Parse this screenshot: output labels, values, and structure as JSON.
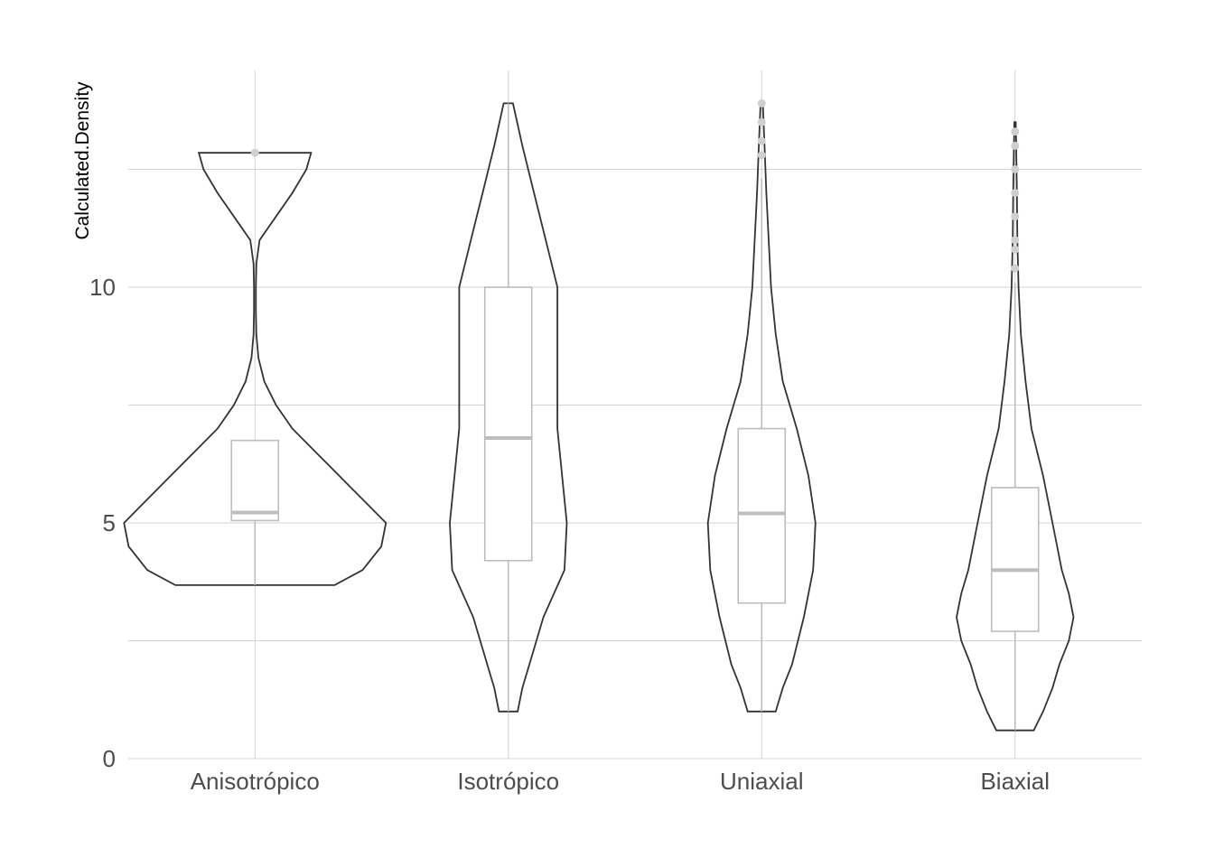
{
  "chart_data": {
    "type": "violin",
    "ylabel": "Calculated.Density",
    "xlabel": "",
    "title": "",
    "ylim": [
      0,
      14.3
    ],
    "y_ticks": [
      0,
      5,
      10
    ],
    "y_minor_ticks": [
      2.5,
      7.5,
      12.5
    ],
    "grid": true,
    "legend": "none",
    "colors": {
      "violin_stroke": "#333333",
      "box_stroke": "#bdbdbd",
      "grid": "#d3d3d3",
      "outlier": "#cfcfcf"
    },
    "categories": [
      "Anisotrópico",
      "Isotrópico",
      "Uniaxial",
      "Biaxial"
    ],
    "groups": [
      {
        "name": "Anisotrópico",
        "box": {
          "q1": 5.05,
          "median": 5.22,
          "q3": 6.75,
          "whisker_low": 3.68,
          "whisker_high": 6.75
        },
        "outliers": [
          12.85
        ],
        "violin": [
          [
            3.68,
            0.34
          ],
          [
            4.0,
            0.46
          ],
          [
            4.5,
            0.54
          ],
          [
            5.0,
            0.56
          ],
          [
            5.5,
            0.46
          ],
          [
            6.0,
            0.36
          ],
          [
            6.5,
            0.26
          ],
          [
            7.0,
            0.16
          ],
          [
            7.5,
            0.09
          ],
          [
            8.0,
            0.04
          ],
          [
            8.5,
            0.015
          ],
          [
            9.0,
            0.006
          ],
          [
            9.5,
            0.004
          ],
          [
            10.0,
            0.004
          ],
          [
            10.5,
            0.006
          ],
          [
            11.0,
            0.02
          ],
          [
            11.5,
            0.09
          ],
          [
            12.0,
            0.16
          ],
          [
            12.5,
            0.22
          ],
          [
            12.85,
            0.24
          ]
        ]
      },
      {
        "name": "Isotrópico",
        "box": {
          "q1": 4.2,
          "median": 6.8,
          "q3": 10.0,
          "whisker_low": 1.0,
          "whisker_high": 13.9
        },
        "outliers": [],
        "violin": [
          [
            1.0,
            0.04
          ],
          [
            1.5,
            0.06
          ],
          [
            2.0,
            0.09
          ],
          [
            3.0,
            0.15
          ],
          [
            4.0,
            0.24
          ],
          [
            5.0,
            0.25
          ],
          [
            6.0,
            0.23
          ],
          [
            7.0,
            0.21
          ],
          [
            8.0,
            0.21
          ],
          [
            9.0,
            0.21
          ],
          [
            10.0,
            0.21
          ],
          [
            11.0,
            0.16
          ],
          [
            12.0,
            0.11
          ],
          [
            13.0,
            0.06
          ],
          [
            13.9,
            0.02
          ]
        ]
      },
      {
        "name": "Uniaxial",
        "box": {
          "q1": 3.3,
          "median": 5.2,
          "q3": 7.0,
          "whisker_low": 1.0,
          "whisker_high": 12.3
        },
        "outliers": [
          12.8,
          13.1,
          13.5,
          13.9
        ],
        "violin": [
          [
            1.0,
            0.06
          ],
          [
            1.5,
            0.09
          ],
          [
            2.0,
            0.13
          ],
          [
            3.0,
            0.18
          ],
          [
            4.0,
            0.22
          ],
          [
            5.0,
            0.23
          ],
          [
            6.0,
            0.2
          ],
          [
            7.0,
            0.15
          ],
          [
            8.0,
            0.09
          ],
          [
            9.0,
            0.06
          ],
          [
            10.0,
            0.04
          ],
          [
            11.0,
            0.03
          ],
          [
            12.0,
            0.02
          ],
          [
            13.0,
            0.012
          ],
          [
            13.9,
            0.005
          ]
        ]
      },
      {
        "name": "Biaxial",
        "box": {
          "q1": 2.7,
          "median": 4.0,
          "q3": 5.75,
          "whisker_low": 0.6,
          "whisker_high": 10.1
        },
        "outliers": [
          10.4,
          10.8,
          11.0,
          11.5,
          12.0,
          12.5,
          13.0,
          13.3
        ],
        "violin": [
          [
            0.6,
            0.08
          ],
          [
            1.0,
            0.12
          ],
          [
            1.5,
            0.16
          ],
          [
            2.0,
            0.19
          ],
          [
            2.5,
            0.23
          ],
          [
            3.0,
            0.25
          ],
          [
            3.5,
            0.23
          ],
          [
            4.0,
            0.2
          ],
          [
            5.0,
            0.16
          ],
          [
            6.0,
            0.12
          ],
          [
            7.0,
            0.07
          ],
          [
            8.0,
            0.045
          ],
          [
            9.0,
            0.025
          ],
          [
            10.0,
            0.015
          ],
          [
            11.0,
            0.01
          ],
          [
            12.0,
            0.008
          ],
          [
            13.0,
            0.005
          ],
          [
            13.5,
            0.003
          ]
        ]
      }
    ]
  }
}
